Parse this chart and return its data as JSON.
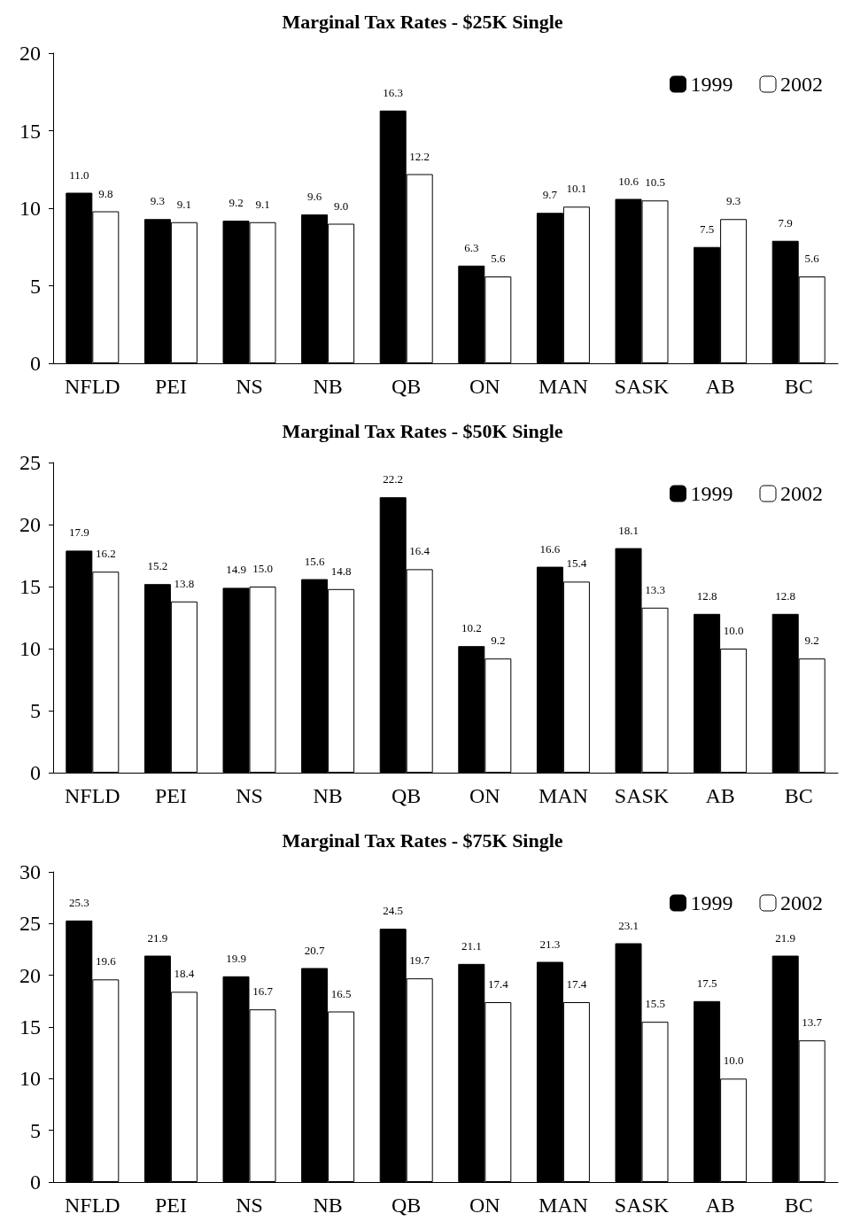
{
  "chart_data": [
    {
      "type": "bar",
      "title": "Marginal Tax Rates - $25K Single",
      "categories": [
        "NFLD",
        "PEI",
        "NS",
        "NB",
        "QB",
        "ON",
        "MAN",
        "SASK",
        "AB",
        "BC"
      ],
      "series": [
        {
          "name": "1999",
          "color": "#000000",
          "values": [
            11.0,
            9.3,
            9.2,
            9.6,
            16.3,
            6.3,
            9.7,
            10.6,
            7.5,
            7.9
          ],
          "value_labels": [
            "11.0",
            "9.3",
            "9.2",
            "9.6",
            "16.3",
            "6.3",
            "9.7",
            "10.6",
            "7.5",
            "7.9"
          ]
        },
        {
          "name": "2002",
          "color": "#ffffff",
          "values": [
            9.8,
            9.1,
            9.1,
            9.0,
            12.2,
            5.6,
            10.1,
            10.5,
            9.3,
            5.6
          ],
          "value_labels": [
            "9.8",
            "9.1",
            "9.1",
            "9.0",
            "12.2",
            "5.6",
            "10.1",
            "10.5",
            "9.3",
            "5.6"
          ]
        }
      ],
      "ylim": [
        0,
        20
      ],
      "yticks": [
        0,
        5,
        10,
        15,
        20
      ],
      "grid": false,
      "legend": "top right"
    },
    {
      "type": "bar",
      "title": "Marginal Tax Rates - $50K Single",
      "categories": [
        "NFLD",
        "PEI",
        "NS",
        "NB",
        "QB",
        "ON",
        "MAN",
        "SASK",
        "AB",
        "BC"
      ],
      "series": [
        {
          "name": "1999",
          "color": "#000000",
          "values": [
            17.9,
            15.2,
            14.9,
            15.6,
            22.2,
            10.2,
            16.6,
            18.1,
            12.8,
            12.8
          ],
          "value_labels": [
            "17.9",
            "15.2",
            "14.9",
            "15.6",
            "22.2",
            "10.2",
            "16.6",
            "18.1",
            "12.8",
            "12.8"
          ]
        },
        {
          "name": "2002",
          "color": "#ffffff",
          "values": [
            16.2,
            13.8,
            15.0,
            14.8,
            16.4,
            9.2,
            15.4,
            13.3,
            10.0,
            9.2
          ],
          "value_labels": [
            "16.2",
            "13.8",
            "15.0",
            "14.8",
            "16.4",
            "9.2",
            "15.4",
            "13.3",
            "10.0",
            "9.2"
          ]
        }
      ],
      "ylim": [
        0,
        25
      ],
      "yticks": [
        0,
        5,
        10,
        15,
        20,
        25
      ],
      "grid": false,
      "legend": "top right"
    },
    {
      "type": "bar",
      "title": "Marginal Tax Rates - $75K Single",
      "categories": [
        "NFLD",
        "PEI",
        "NS",
        "NB",
        "QB",
        "ON",
        "MAN",
        "SASK",
        "AB",
        "BC"
      ],
      "series": [
        {
          "name": "1999",
          "color": "#000000",
          "values": [
            25.3,
            21.9,
            19.9,
            20.7,
            24.5,
            21.1,
            21.3,
            23.1,
            17.5,
            21.9
          ],
          "value_labels": [
            "25.3",
            "21.9",
            "19.9",
            "20.7",
            "24.5",
            "21.1",
            "21.3",
            "23.1",
            "17.5",
            "21.9"
          ]
        },
        {
          "name": "2002",
          "color": "#ffffff",
          "values": [
            19.6,
            18.4,
            16.7,
            16.5,
            19.7,
            17.4,
            17.4,
            15.5,
            10.0,
            13.7
          ],
          "value_labels": [
            "19.6",
            "18.4",
            "16.7",
            "16.5",
            "19.7",
            "17.4",
            "17.4",
            "15.5",
            "10.0",
            "13.7"
          ]
        }
      ],
      "ylim": [
        0,
        30
      ],
      "yticks": [
        0,
        5,
        10,
        15,
        20,
        25,
        30
      ],
      "grid": false,
      "legend": "top right"
    }
  ]
}
